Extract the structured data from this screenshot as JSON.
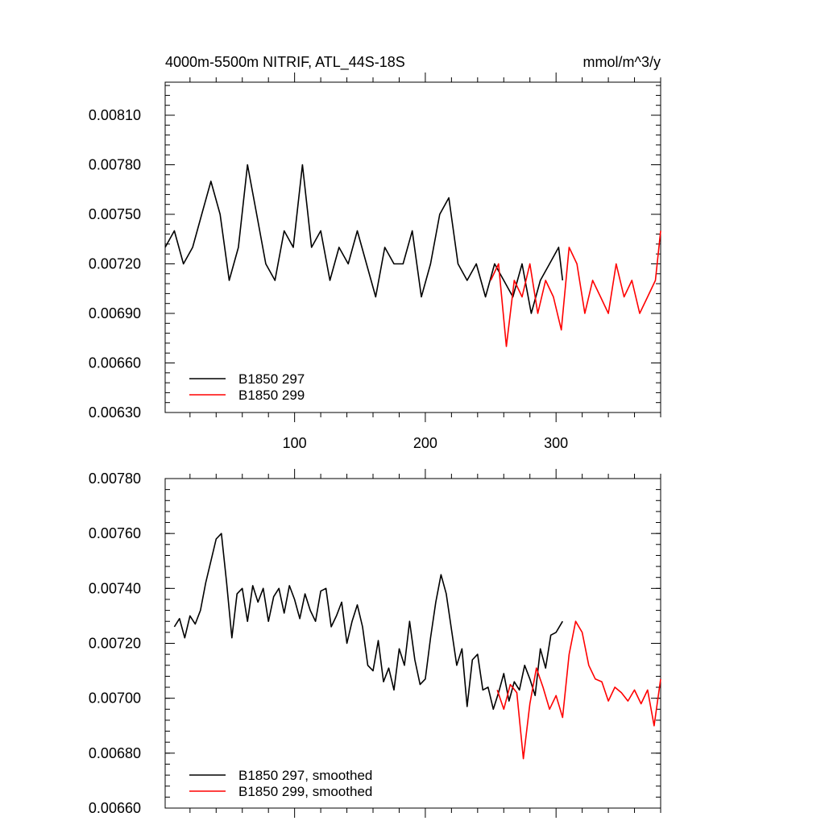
{
  "chart_data": [
    {
      "type": "line",
      "title": "4000m-5500m NITRIF, ATL_44S-18S",
      "units": "mmol/m^3/y",
      "xlim": [
        1,
        380
      ],
      "ylim": [
        0.0063,
        0.0083
      ],
      "xticks": [
        100,
        200,
        300
      ],
      "yticks": [
        0.0063,
        0.0066,
        0.0069,
        0.0072,
        0.0075,
        0.0078,
        0.0081
      ],
      "ytick_labels": [
        "0.00630",
        "0.00660",
        "0.00690",
        "0.00720",
        "0.00750",
        "0.00780",
        "0.00810"
      ],
      "legend": "bottom-left",
      "series": [
        {
          "name": "B1850 297",
          "color": "#000000",
          "x": [
            1,
            8,
            15,
            22,
            29,
            36,
            43,
            50,
            57,
            64,
            71,
            78,
            85,
            92,
            99,
            106,
            113,
            120,
            127,
            134,
            141,
            148,
            155,
            162,
            169,
            176,
            183,
            190,
            197,
            204,
            211,
            218,
            225,
            232,
            239,
            246,
            253,
            260,
            267,
            274,
            281,
            288,
            295,
            302,
            305
          ],
          "y": [
            0.0073,
            0.0074,
            0.0072,
            0.0073,
            0.0075,
            0.0077,
            0.0075,
            0.0071,
            0.0073,
            0.0078,
            0.0075,
            0.0072,
            0.0071,
            0.0074,
            0.0073,
            0.0078,
            0.0073,
            0.0074,
            0.0071,
            0.0073,
            0.0072,
            0.0074,
            0.0072,
            0.007,
            0.0073,
            0.0072,
            0.0072,
            0.0074,
            0.007,
            0.0072,
            0.0075,
            0.0076,
            0.0072,
            0.0071,
            0.0072,
            0.007,
            0.0072,
            0.0071,
            0.007,
            0.0072,
            0.0069,
            0.0071,
            0.0072,
            0.0073,
            0.0071
          ]
        },
        {
          "name": "B1850 299",
          "color": "#ff0000",
          "x": [
            250,
            256,
            262,
            268,
            274,
            280,
            286,
            292,
            298,
            304,
            310,
            316,
            322,
            328,
            334,
            340,
            346,
            352,
            358,
            364,
            370,
            376,
            380
          ],
          "y": [
            0.0071,
            0.0072,
            0.0067,
            0.0071,
            0.007,
            0.0072,
            0.0069,
            0.0071,
            0.007,
            0.0068,
            0.0073,
            0.0072,
            0.0069,
            0.0071,
            0.007,
            0.0069,
            0.0072,
            0.007,
            0.0071,
            0.0069,
            0.007,
            0.0071,
            0.0074
          ]
        }
      ]
    },
    {
      "type": "line",
      "xlim": [
        1,
        380
      ],
      "ylim": [
        0.0066,
        0.0078
      ],
      "xticks": [
        100,
        200,
        300
      ],
      "yticks": [
        0.0066,
        0.0068,
        0.007,
        0.0072,
        0.0074,
        0.0076,
        0.0078
      ],
      "ytick_labels": [
        "0.00660",
        "0.00680",
        "0.00700",
        "0.00720",
        "0.00740",
        "0.00760",
        "0.00780"
      ],
      "legend": "bottom-left",
      "series": [
        {
          "name": "B1850 297, smoothed",
          "color": "#000000",
          "x": [
            8,
            12,
            16,
            20,
            24,
            28,
            32,
            36,
            40,
            44,
            48,
            52,
            56,
            60,
            64,
            68,
            72,
            76,
            80,
            84,
            88,
            92,
            96,
            100,
            104,
            108,
            112,
            116,
            120,
            124,
            128,
            132,
            136,
            140,
            144,
            148,
            152,
            156,
            160,
            164,
            168,
            172,
            176,
            180,
            184,
            188,
            192,
            196,
            200,
            204,
            208,
            212,
            216,
            220,
            224,
            228,
            232,
            236,
            240,
            244,
            248,
            252,
            256,
            260,
            264,
            268,
            272,
            276,
            280,
            284,
            288,
            292,
            296,
            300,
            305
          ],
          "y": [
            0.00726,
            0.00729,
            0.00722,
            0.0073,
            0.00727,
            0.00732,
            0.00742,
            0.0075,
            0.00758,
            0.0076,
            0.00742,
            0.00722,
            0.00738,
            0.0074,
            0.00728,
            0.00741,
            0.00735,
            0.0074,
            0.00728,
            0.00737,
            0.0074,
            0.00731,
            0.00741,
            0.00736,
            0.00729,
            0.00738,
            0.00732,
            0.00728,
            0.00739,
            0.0074,
            0.00726,
            0.0073,
            0.00735,
            0.0072,
            0.00728,
            0.00734,
            0.00726,
            0.00712,
            0.0071,
            0.00721,
            0.00706,
            0.00711,
            0.00703,
            0.00718,
            0.00712,
            0.00728,
            0.00714,
            0.00705,
            0.00707,
            0.00722,
            0.00735,
            0.00745,
            0.00738,
            0.00725,
            0.00712,
            0.00718,
            0.00697,
            0.00714,
            0.00716,
            0.00703,
            0.00704,
            0.00696,
            0.00702,
            0.00709,
            0.00699,
            0.00706,
            0.00703,
            0.00712,
            0.00707,
            0.00701,
            0.00718,
            0.00711,
            0.00723,
            0.00724,
            0.00728
          ]
        },
        {
          "name": "B1850 299, smoothed",
          "color": "#ff0000",
          "x": [
            255,
            260,
            265,
            270,
            275,
            280,
            285,
            290,
            295,
            300,
            305,
            310,
            315,
            320,
            325,
            330,
            335,
            340,
            345,
            350,
            355,
            360,
            365,
            370,
            375,
            380
          ],
          "y": [
            0.00703,
            0.00696,
            0.00705,
            0.00702,
            0.00678,
            0.00698,
            0.00711,
            0.00704,
            0.00696,
            0.00701,
            0.00693,
            0.00716,
            0.00728,
            0.00724,
            0.00712,
            0.00707,
            0.00706,
            0.00699,
            0.00704,
            0.00702,
            0.00699,
            0.00703,
            0.00698,
            0.00703,
            0.0069,
            0.00707
          ]
        }
      ]
    }
  ]
}
